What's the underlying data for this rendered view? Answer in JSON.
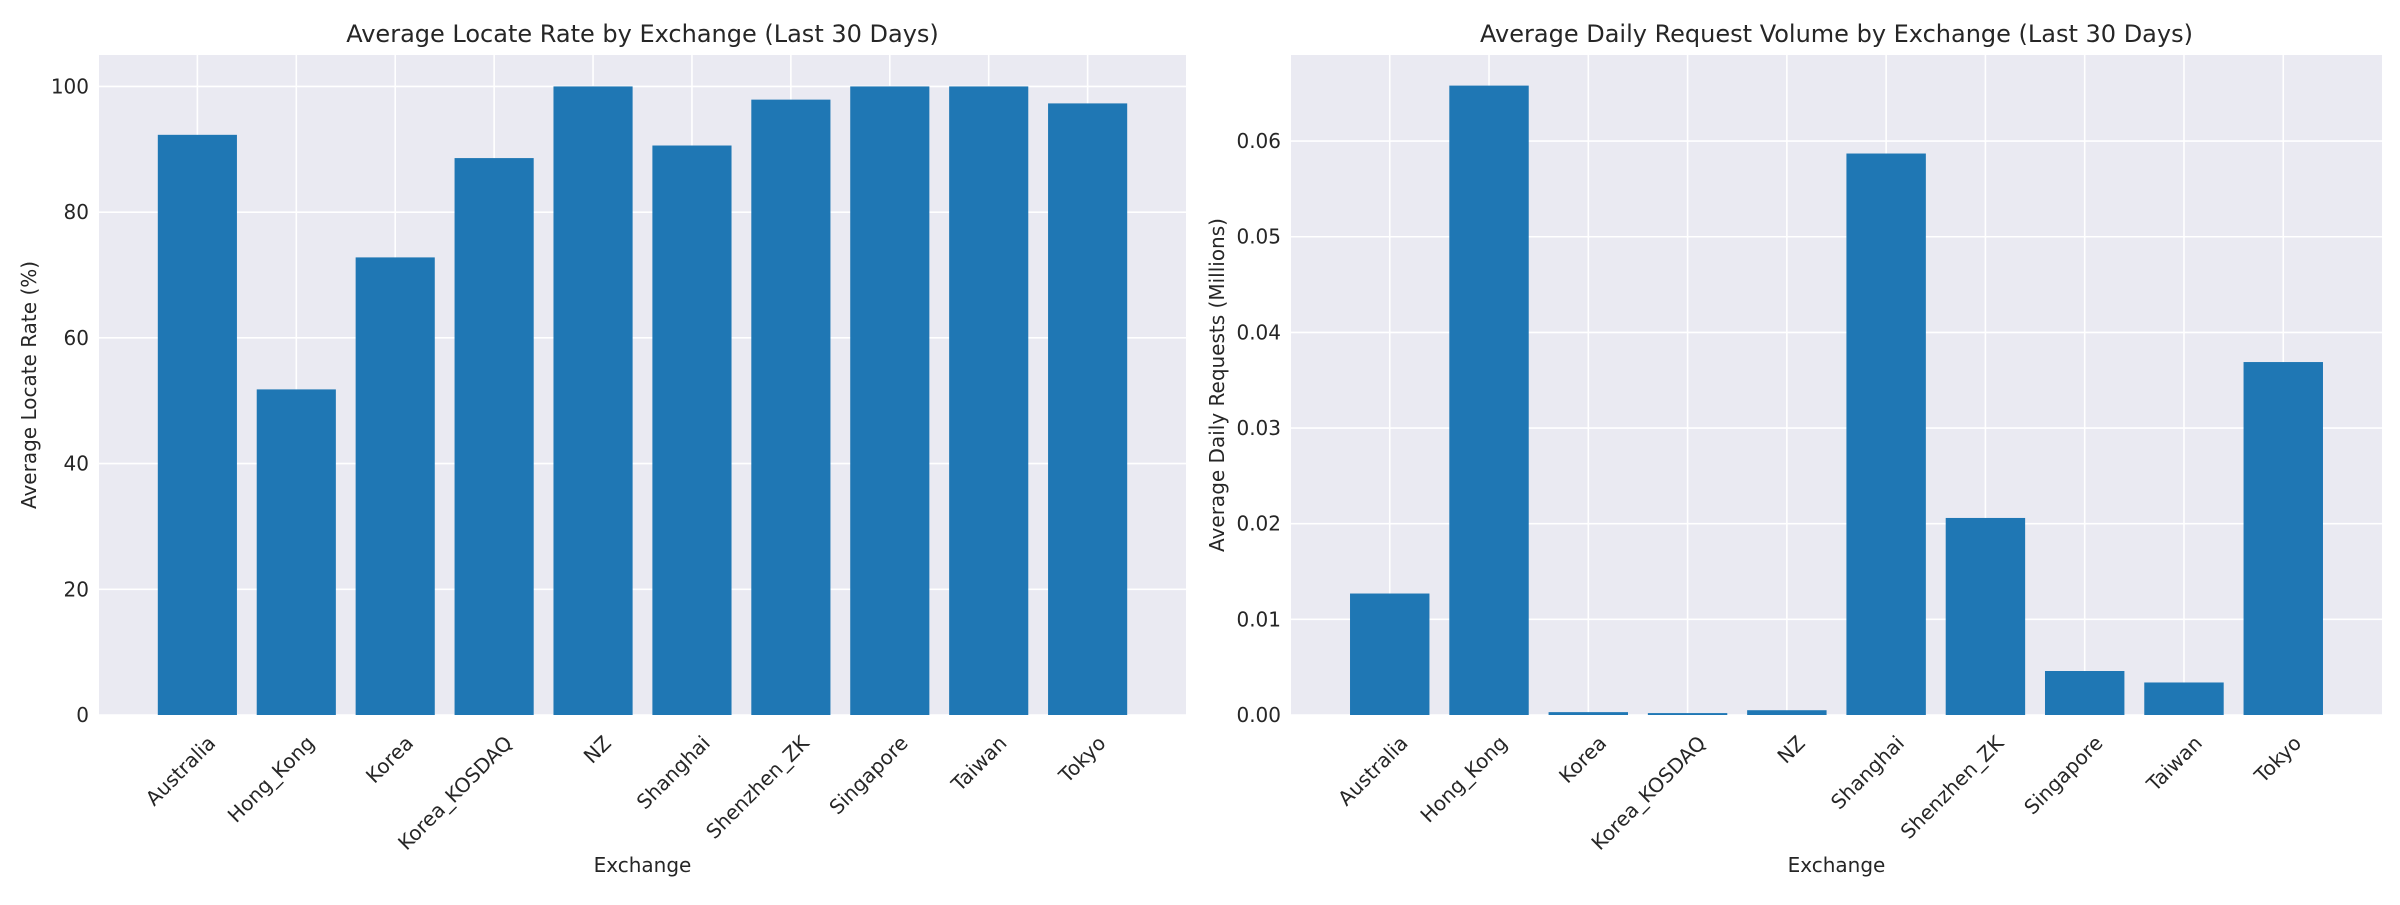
{
  "colors": {
    "bar": "#1f77b4",
    "plot_background": "#eaeaf2",
    "grid": "#ffffff"
  },
  "chart_data": [
    {
      "type": "bar",
      "title": "Average Locate Rate by Exchange (Last 30 Days)",
      "xlabel": "Exchange",
      "ylabel": "Average Locate Rate (%)",
      "categories": [
        "Australia",
        "Hong_Kong",
        "Korea",
        "Korea_KOSDAQ",
        "NZ",
        "Shanghai",
        "Shenzhen_ZK",
        "Singapore",
        "Taiwan",
        "Tokyo"
      ],
      "values": [
        92.3,
        51.8,
        72.8,
        88.6,
        100,
        90.6,
        97.9,
        100,
        100,
        97.3
      ],
      "ylim": [
        0,
        105
      ],
      "yticks": [
        0,
        20,
        40,
        60,
        80,
        100
      ],
      "ytick_labels": [
        "0",
        "20",
        "40",
        "60",
        "80",
        "100"
      ],
      "grid": true,
      "style": "seaborn-darkgrid"
    },
    {
      "type": "bar",
      "title": "Average Daily Request Volume by Exchange (Last 30 Days)",
      "xlabel": "Exchange",
      "ylabel": "Average Daily Requests (Millions)",
      "categories": [
        "Australia",
        "Hong_Kong",
        "Korea",
        "Korea_KOSDAQ",
        "NZ",
        "Shanghai",
        "Shenzhen_ZK",
        "Singapore",
        "Taiwan",
        "Tokyo"
      ],
      "values": [
        0.0127,
        0.0658,
        0.0003,
        0.0002,
        0.0005,
        0.0587,
        0.0206,
        0.0046,
        0.0034,
        0.0369
      ],
      "ylim": [
        0,
        0.069
      ],
      "yticks": [
        0,
        0.01,
        0.02,
        0.03,
        0.04,
        0.05,
        0.06
      ],
      "ytick_labels": [
        "0.00",
        "0.01",
        "0.02",
        "0.03",
        "0.04",
        "0.05",
        "0.06"
      ],
      "grid": true,
      "style": "seaborn-darkgrid"
    }
  ]
}
